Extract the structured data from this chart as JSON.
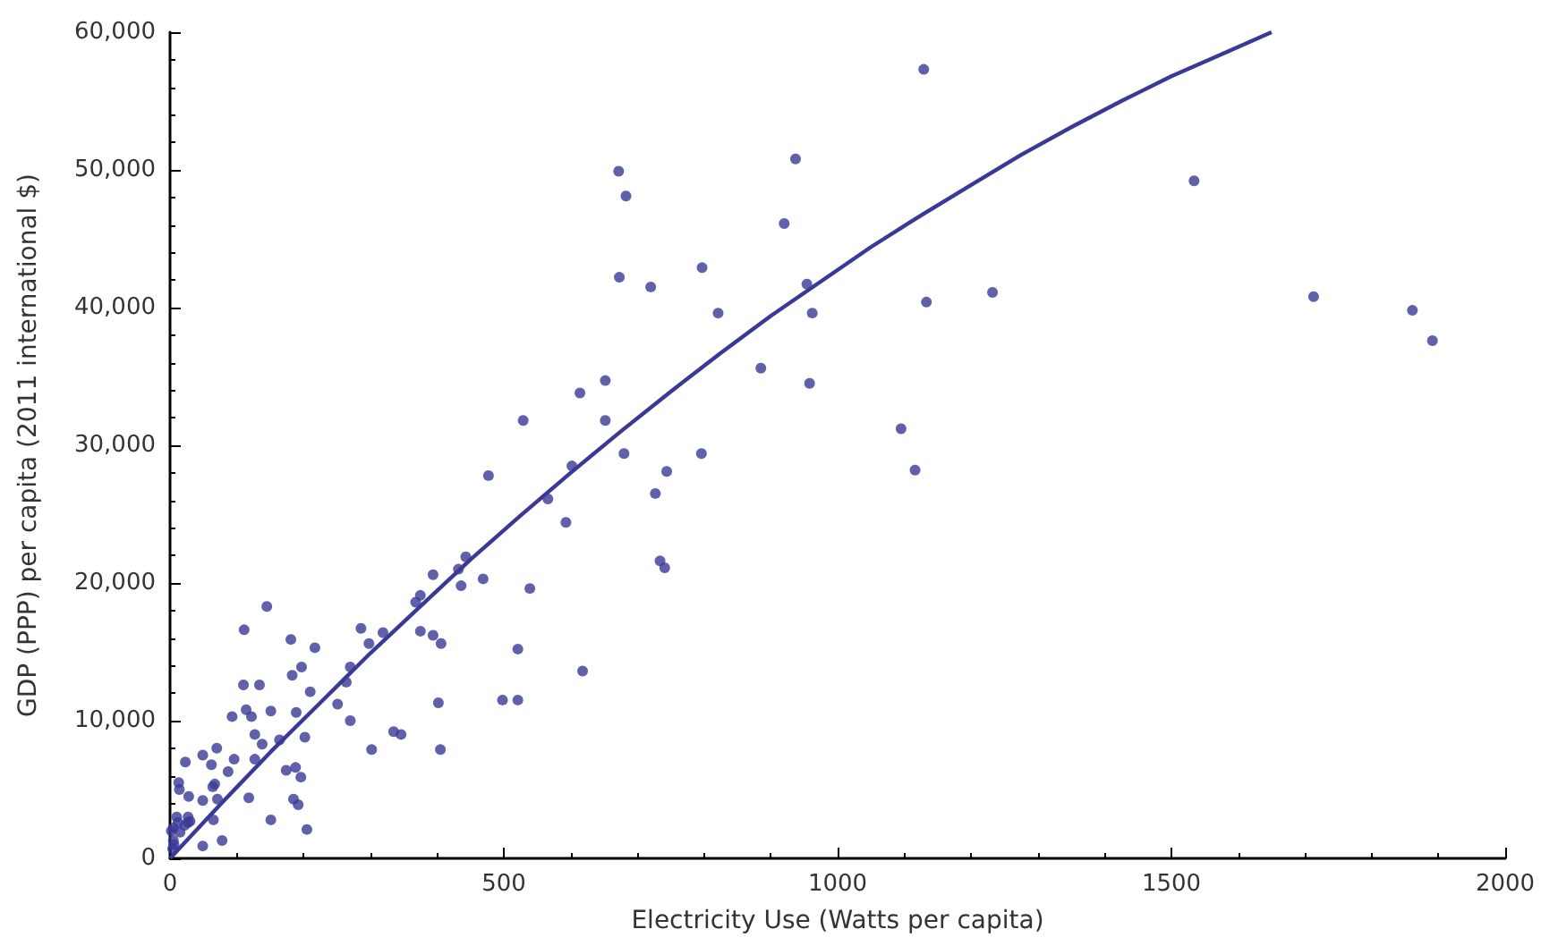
{
  "chart_data": {
    "type": "scatter",
    "xlabel": "Electricity Use (Watts per capita)",
    "ylabel": "GDP (PPP) per capita (2011 international $)",
    "xlim": [
      0,
      2000
    ],
    "xticks": [
      0,
      500,
      1000,
      1500,
      2000
    ],
    "ylim": [
      0,
      60000
    ],
    "yticks": [
      0,
      {
        "value": 10000,
        "label": "10,000"
      },
      {
        "value": 20000,
        "label": "20,000"
      },
      {
        "value": 30000,
        "label": "30,000"
      },
      {
        "value": 40000,
        "label": "40,000"
      },
      {
        "value": 50000,
        "label": "50,000"
      },
      {
        "value": 60000,
        "label": "60,000"
      }
    ],
    "grid": false,
    "marker": "circle",
    "series": [
      {
        "color": "#3a3a96",
        "x": [
          1129,
          937,
          920,
          954,
          821,
          962,
          1133,
          1232,
          1534,
          1713,
          1861,
          1891,
          885,
          958,
          1095,
          1116,
          672,
          683,
          673,
          720,
          797,
          614,
          652,
          529,
          652,
          680,
          796,
          744,
          727,
          477,
          602,
          566,
          593,
          734,
          741,
          443,
          432,
          394,
          469,
          436,
          539,
          375,
          368,
          286,
          319,
          298,
          375,
          394,
          406,
          270,
          264,
          251,
          270,
          521,
          618,
          402,
          498,
          521,
          335,
          346,
          302,
          405,
          145,
          111,
          181,
          217,
          197,
          183,
          110,
          134,
          210,
          151,
          114,
          122,
          93,
          189,
          127,
          202,
          138,
          164,
          70,
          49,
          62,
          23,
          96,
          87,
          127,
          174,
          188,
          196,
          67,
          64,
          13,
          14,
          28,
          49,
          71,
          118,
          185,
          192,
          65,
          151,
          205,
          49,
          78,
          10,
          12,
          27,
          27,
          5,
          5,
          4,
          6,
          22,
          30,
          15,
          2
        ],
        "values": [
          57300,
          50800,
          46100,
          41700,
          39600,
          39600,
          40400,
          41100,
          49200,
          40800,
          39800,
          37600,
          35600,
          34500,
          31200,
          28200,
          49900,
          48100,
          42200,
          41500,
          42900,
          33800,
          34700,
          31800,
          31800,
          29400,
          29400,
          28100,
          26500,
          27800,
          28500,
          26100,
          24400,
          21600,
          21100,
          21900,
          21000,
          20600,
          20300,
          19800,
          19600,
          19100,
          18600,
          16700,
          16400,
          15600,
          16500,
          16200,
          15600,
          13900,
          12800,
          11200,
          10000,
          15200,
          13600,
          11300,
          11500,
          11500,
          9200,
          9000,
          7900,
          7900,
          18300,
          16600,
          15900,
          15300,
          13900,
          13300,
          12600,
          12600,
          12100,
          10700,
          10800,
          10300,
          10300,
          10600,
          9000,
          8800,
          8300,
          8600,
          8000,
          7500,
          6800,
          7000,
          7200,
          6300,
          7200,
          6400,
          6600,
          5900,
          5400,
          5200,
          5500,
          5000,
          4500,
          4200,
          4300,
          4400,
          4300,
          3900,
          2800,
          2800,
          2100,
          900,
          1300,
          3000,
          2600,
          3000,
          2600,
          2200,
          1300,
          700,
          1000,
          2400,
          2700,
          1900,
          2000
        ]
      },
      {
        "type": "line",
        "color": "#3a3a96",
        "marker": "none",
        "x": [
          0,
          75,
          150,
          225,
          300,
          375,
          450,
          525,
          600,
          675,
          750,
          825,
          900,
          975,
          1050,
          1125,
          1200,
          1275,
          1350,
          1425,
          1500,
          1575,
          1650
        ],
        "values": [
          0,
          3900,
          7700,
          11300,
          14900,
          18300,
          21700,
          24900,
          28000,
          31000,
          33900,
          36700,
          39400,
          41900,
          44400,
          46700,
          48900,
          51100,
          53100,
          55000,
          56800,
          58400,
          60000
        ]
      }
    ]
  }
}
